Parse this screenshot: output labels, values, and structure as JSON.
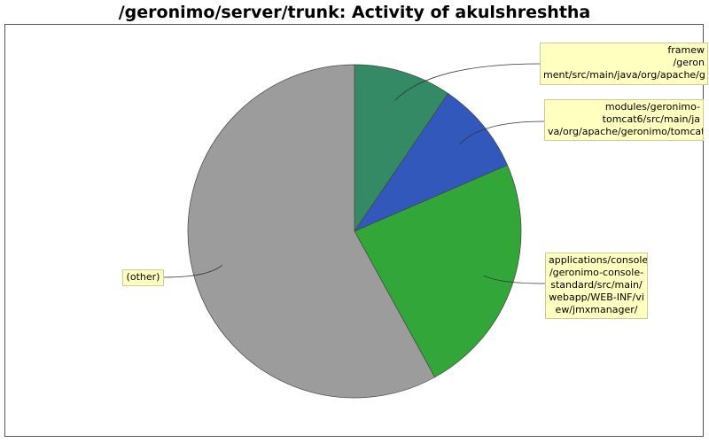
{
  "chart_data": {
    "type": "pie",
    "title": "/geronimo/server/trunk: Activity of akulshreshtha",
    "start_angle_deg": 0,
    "direction": "clockwise",
    "slices": [
      {
        "label": "framew\n/geron\nment/src/main/java/org/apache/g",
        "value": 9.5,
        "color": "#358a66"
      },
      {
        "label": "modules/geronimo-\ntomcat6/src/main/ja\nva/org/apache/geronimo/tomcat",
        "value": 9.0,
        "color": "#3358bb"
      },
      {
        "label": "applications/console\n/geronimo-console-\nstandard/src/main/\nwebapp/WEB-INF/vi\new/jmxmanager/",
        "value": 23.5,
        "color": "#33a63a"
      },
      {
        "label": "(other)",
        "value": 58.0,
        "color": "#9c9c9c"
      }
    ]
  }
}
